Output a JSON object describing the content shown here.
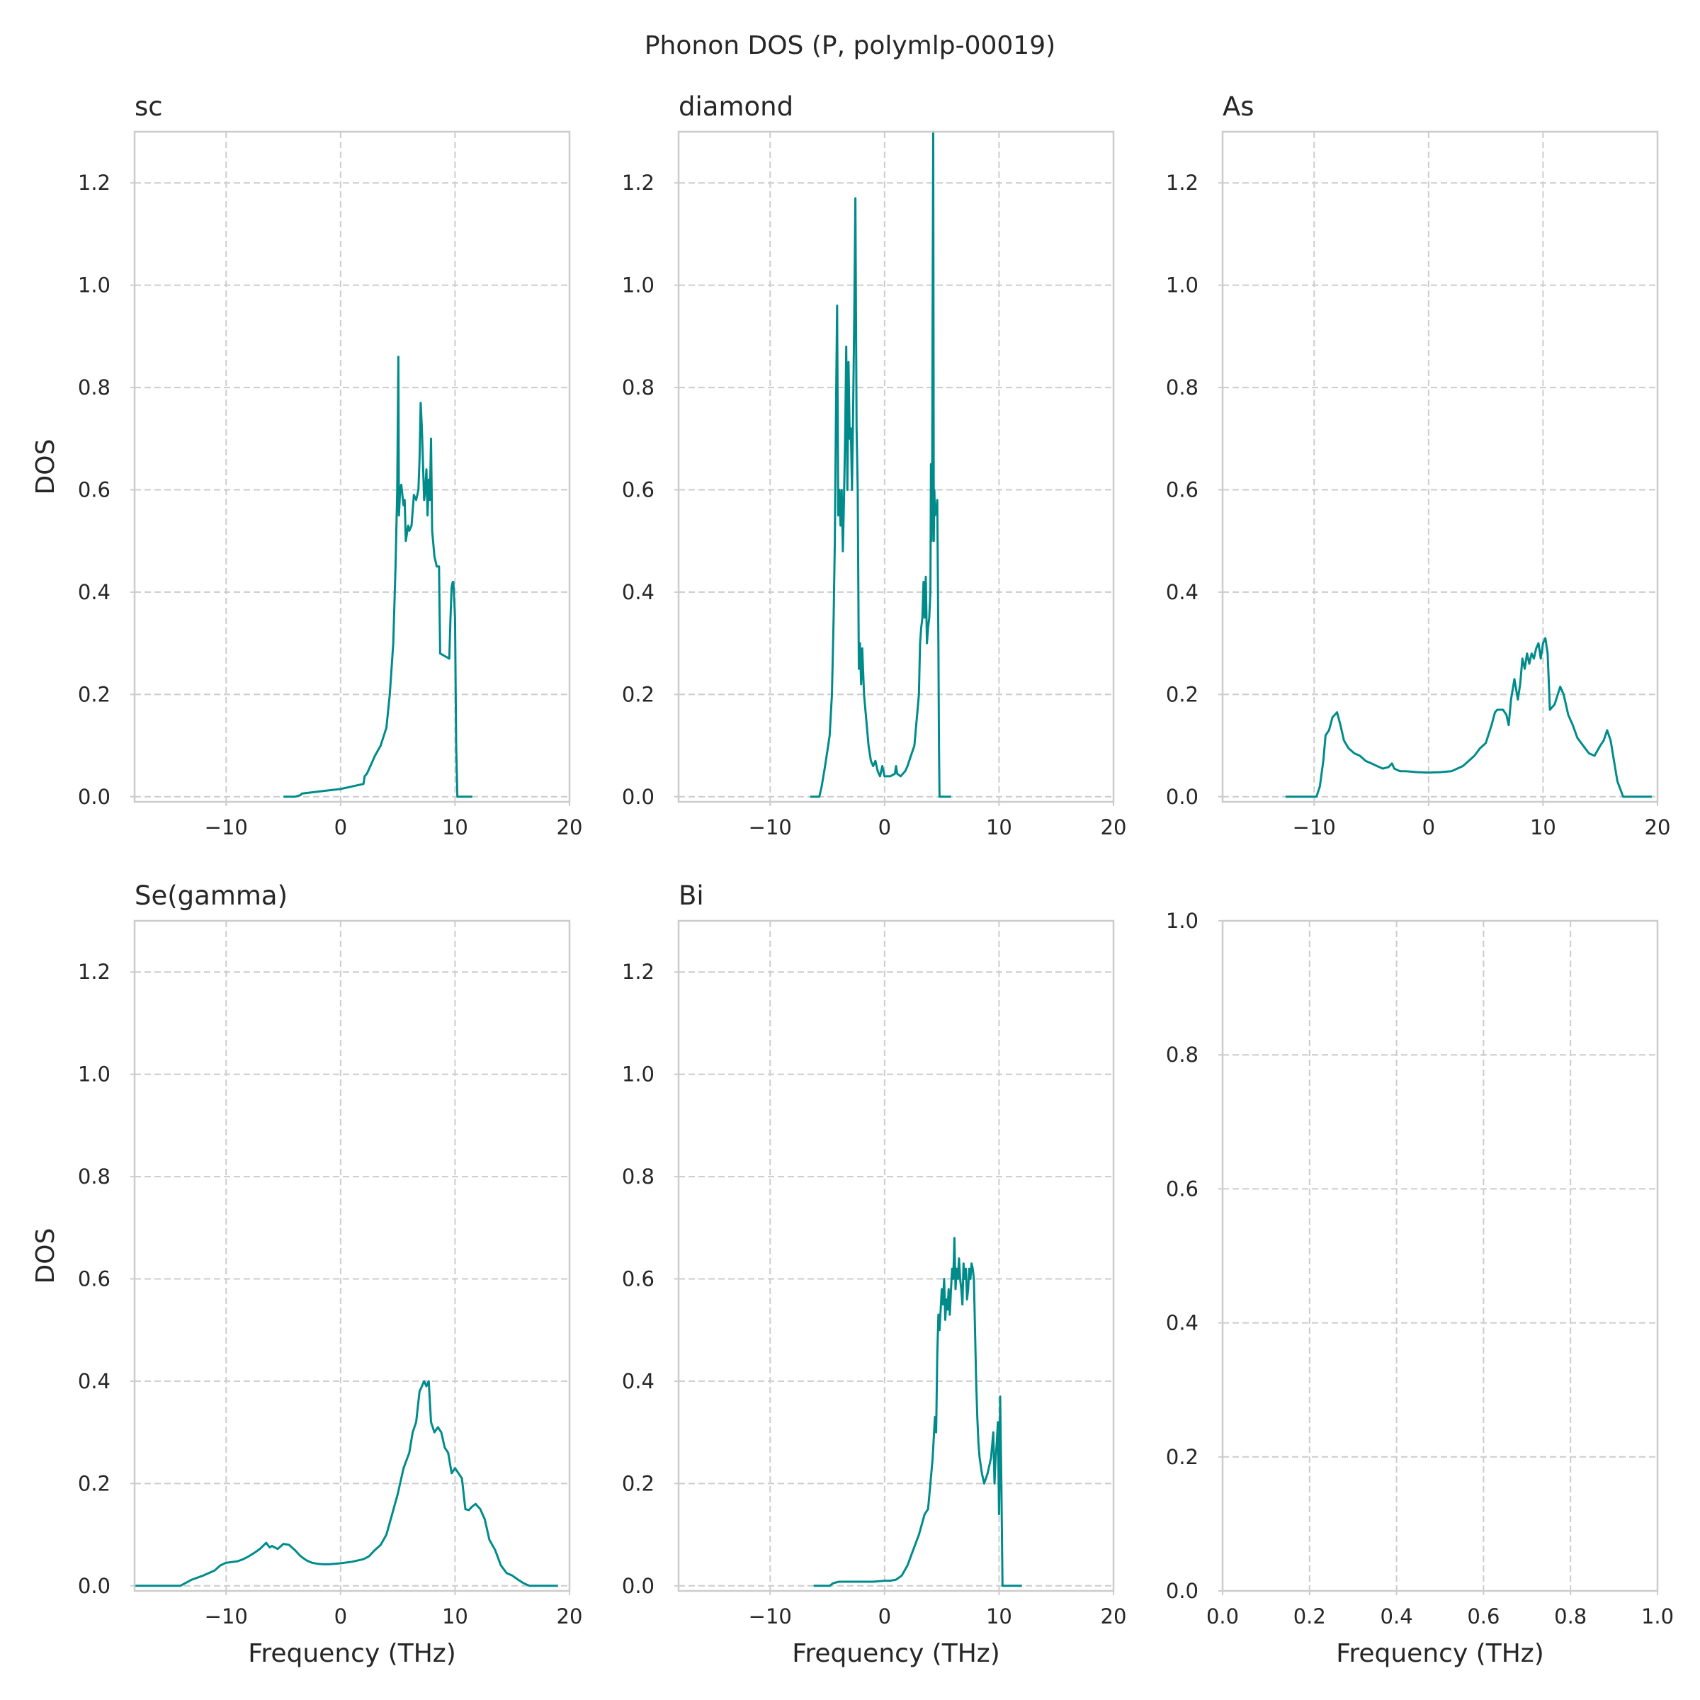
{
  "figure": {
    "title": "Phonon DOS (P, polymlp-00019)",
    "line_color": "#008b8b",
    "grid": true
  },
  "chart_data": [
    {
      "type": "line",
      "title": "sc",
      "xlabel": "",
      "ylabel": "DOS",
      "xlim": [
        -18,
        20
      ],
      "ylim": [
        -0.01,
        1.3
      ],
      "xticks": [
        -10,
        0,
        10,
        20
      ],
      "xtick_labels": [
        "−10",
        "0",
        "10",
        "20"
      ],
      "yticks": [
        0.0,
        0.2,
        0.4,
        0.6,
        0.8,
        1.0,
        1.2
      ],
      "ytick_labels": [
        "0.0",
        "0.2",
        "0.4",
        "0.6",
        "0.8",
        "1.0",
        "1.2"
      ],
      "series": [
        {
          "x": [
            -5.0,
            -4.0,
            -3.5,
            -3.4,
            -2.0,
            0.0,
            1.0,
            2.0,
            2.1,
            2.3,
            2.6,
            3.0,
            3.5,
            4.0,
            4.3,
            4.6,
            4.8,
            4.95,
            5.05,
            5.1,
            5.2,
            5.3,
            5.5,
            5.6,
            5.7,
            5.9,
            6.0,
            6.2,
            6.4,
            6.6,
            6.8,
            6.9,
            7.0,
            7.1,
            7.2,
            7.3,
            7.4,
            7.5,
            7.6,
            7.7,
            7.8,
            7.9,
            8.0,
            8.2,
            8.4,
            8.6,
            8.7,
            9.5,
            9.6,
            9.7,
            9.8,
            9.85,
            9.9,
            10.0,
            10.1,
            10.2,
            10.5,
            11.5
          ],
          "y": [
            0.0,
            0.0,
            0.003,
            0.006,
            0.01,
            0.015,
            0.02,
            0.025,
            0.04,
            0.045,
            0.06,
            0.08,
            0.1,
            0.135,
            0.2,
            0.3,
            0.45,
            0.6,
            0.86,
            0.55,
            0.6,
            0.61,
            0.57,
            0.58,
            0.5,
            0.53,
            0.52,
            0.53,
            0.59,
            0.58,
            0.6,
            0.66,
            0.77,
            0.72,
            0.65,
            0.58,
            0.6,
            0.64,
            0.55,
            0.62,
            0.58,
            0.7,
            0.52,
            0.47,
            0.45,
            0.45,
            0.28,
            0.27,
            0.35,
            0.41,
            0.42,
            0.42,
            0.4,
            0.35,
            0.1,
            0.0,
            0.0,
            0.0
          ]
        }
      ]
    },
    {
      "type": "line",
      "title": "diamond",
      "xlabel": "",
      "ylabel": "",
      "xlim": [
        -18,
        20
      ],
      "ylim": [
        -0.01,
        1.3
      ],
      "xticks": [
        -10,
        0,
        10,
        20
      ],
      "xtick_labels": [
        "−10",
        "0",
        "10",
        "20"
      ],
      "yticks": [
        0.0,
        0.2,
        0.4,
        0.6,
        0.8,
        1.0,
        1.2
      ],
      "ytick_labels": [
        "0.0",
        "0.2",
        "0.4",
        "0.6",
        "0.8",
        "1.0",
        "1.2"
      ],
      "series": [
        {
          "x": [
            -6.5,
            -5.7,
            -5.5,
            -5.2,
            -5.0,
            -4.8,
            -4.6,
            -4.45,
            -4.35,
            -4.25,
            -4.15,
            -4.05,
            -3.95,
            -3.85,
            -3.75,
            -3.65,
            -3.55,
            -3.45,
            -3.35,
            -3.25,
            -3.15,
            -3.05,
            -2.95,
            -2.85,
            -2.75,
            -2.65,
            -2.55,
            -2.45,
            -2.35,
            -2.25,
            -2.15,
            -2.05,
            -1.95,
            -1.8,
            -1.6,
            -1.4,
            -1.2,
            -1.0,
            -0.8,
            -0.7,
            -0.6,
            -0.4,
            -0.2,
            0.0,
            0.5,
            0.9,
            1.0,
            1.1,
            1.4,
            1.6,
            1.8,
            2.0,
            2.3,
            2.6,
            2.8,
            3.0,
            3.1,
            3.2,
            3.3,
            3.4,
            3.5,
            3.6,
            3.7,
            3.8,
            3.9,
            4.0,
            4.05,
            4.1,
            4.15,
            4.2,
            4.25,
            4.3,
            4.35,
            4.4,
            4.5,
            4.6,
            4.7,
            4.75,
            4.8,
            4.9,
            5.0,
            5.8
          ],
          "y": [
            0.0,
            0.0,
            0.02,
            0.06,
            0.09,
            0.12,
            0.2,
            0.35,
            0.5,
            0.75,
            0.96,
            0.55,
            0.6,
            0.53,
            0.6,
            0.48,
            0.58,
            0.7,
            0.88,
            0.6,
            0.85,
            0.7,
            0.72,
            0.6,
            0.75,
            0.94,
            1.17,
            0.72,
            0.6,
            0.25,
            0.3,
            0.22,
            0.29,
            0.2,
            0.15,
            0.1,
            0.07,
            0.06,
            0.07,
            0.06,
            0.05,
            0.04,
            0.06,
            0.04,
            0.04,
            0.045,
            0.06,
            0.045,
            0.04,
            0.045,
            0.05,
            0.06,
            0.08,
            0.1,
            0.15,
            0.2,
            0.3,
            0.33,
            0.35,
            0.42,
            0.35,
            0.43,
            0.3,
            0.33,
            0.35,
            0.4,
            0.65,
            0.5,
            0.6,
            0.98,
            1.3,
            0.5,
            0.6,
            0.55,
            0.56,
            0.58,
            0.3,
            0.1,
            0.0,
            0.0,
            0.0,
            0.0
          ]
        }
      ]
    },
    {
      "type": "line",
      "title": "As",
      "xlabel": "",
      "ylabel": "",
      "xlim": [
        -18,
        20
      ],
      "ylim": [
        -0.01,
        1.3
      ],
      "xticks": [
        -10,
        0,
        10,
        20
      ],
      "xtick_labels": [
        "−10",
        "0",
        "10",
        "20"
      ],
      "yticks": [
        0.0,
        0.2,
        0.4,
        0.6,
        0.8,
        1.0,
        1.2
      ],
      "ytick_labels": [
        "0.0",
        "0.2",
        "0.4",
        "0.6",
        "0.8",
        "1.0",
        "1.2"
      ],
      "series": [
        {
          "x": [
            -12.5,
            -9.8,
            -9.5,
            -9.2,
            -9.0,
            -8.7,
            -8.4,
            -8.0,
            -7.7,
            -7.4,
            -7.0,
            -6.5,
            -6.0,
            -5.5,
            -5.0,
            -4.5,
            -4.0,
            -3.5,
            -3.2,
            -3.0,
            -2.5,
            -2.0,
            -1.0,
            0.0,
            1.0,
            2.0,
            3.0,
            3.5,
            4.0,
            4.5,
            5.0,
            5.5,
            5.8,
            6.0,
            6.5,
            6.8,
            7.0,
            7.2,
            7.5,
            7.8,
            8.0,
            8.2,
            8.4,
            8.6,
            8.8,
            9.0,
            9.2,
            9.4,
            9.6,
            9.8,
            10.0,
            10.2,
            10.4,
            10.6,
            11.0,
            11.5,
            11.8,
            12.2,
            12.6,
            13.0,
            13.5,
            14.0,
            14.5,
            15.0,
            15.3,
            15.6,
            15.9,
            16.2,
            16.5,
            17.0,
            18.0,
            19.5
          ],
          "y": [
            0.0,
            0.0,
            0.02,
            0.07,
            0.12,
            0.13,
            0.155,
            0.165,
            0.14,
            0.11,
            0.095,
            0.085,
            0.08,
            0.07,
            0.065,
            0.06,
            0.055,
            0.058,
            0.065,
            0.055,
            0.05,
            0.05,
            0.048,
            0.047,
            0.048,
            0.05,
            0.06,
            0.07,
            0.08,
            0.095,
            0.105,
            0.14,
            0.165,
            0.17,
            0.17,
            0.16,
            0.14,
            0.19,
            0.23,
            0.19,
            0.22,
            0.27,
            0.25,
            0.28,
            0.26,
            0.28,
            0.27,
            0.29,
            0.3,
            0.27,
            0.3,
            0.31,
            0.28,
            0.17,
            0.18,
            0.215,
            0.2,
            0.16,
            0.14,
            0.115,
            0.1,
            0.085,
            0.08,
            0.1,
            0.11,
            0.13,
            0.11,
            0.07,
            0.03,
            0.0,
            0.0,
            0.0
          ]
        }
      ]
    },
    {
      "type": "line",
      "title": "Se(gamma)",
      "xlabel": "Frequency (THz)",
      "ylabel": "DOS",
      "xlim": [
        -18,
        20
      ],
      "ylim": [
        -0.01,
        1.3
      ],
      "xticks": [
        -10,
        0,
        10,
        20
      ],
      "xtick_labels": [
        "−10",
        "0",
        "10",
        "20"
      ],
      "yticks": [
        0.0,
        0.2,
        0.4,
        0.6,
        0.8,
        1.0,
        1.2
      ],
      "ytick_labels": [
        "0.0",
        "0.2",
        "0.4",
        "0.6",
        "0.8",
        "1.0",
        "1.2"
      ],
      "series": [
        {
          "x": [
            -18.0,
            -14.0,
            -13.0,
            -12.0,
            -11.0,
            -10.5,
            -10.0,
            -9.0,
            -8.5,
            -8.0,
            -7.5,
            -7.0,
            -6.5,
            -6.2,
            -6.0,
            -5.5,
            -5.0,
            -4.5,
            -4.0,
            -3.5,
            -3.0,
            -2.5,
            -2.0,
            -1.5,
            -1.0,
            0.0,
            1.0,
            2.0,
            2.5,
            3.0,
            3.5,
            4.0,
            4.5,
            5.0,
            5.5,
            6.0,
            6.3,
            6.6,
            6.9,
            7.1,
            7.3,
            7.5,
            7.7,
            7.9,
            8.2,
            8.5,
            8.8,
            9.1,
            9.4,
            9.7,
            10.0,
            10.3,
            10.6,
            10.9,
            11.2,
            11.5,
            11.8,
            12.2,
            12.6,
            13.0,
            13.5,
            14.0,
            14.5,
            15.0,
            15.5,
            16.0,
            16.5,
            17.0,
            18.0,
            19.0
          ],
          "y": [
            0.0,
            0.0,
            0.012,
            0.02,
            0.03,
            0.04,
            0.045,
            0.048,
            0.052,
            0.058,
            0.065,
            0.073,
            0.084,
            0.075,
            0.078,
            0.072,
            0.082,
            0.08,
            0.07,
            0.058,
            0.05,
            0.045,
            0.043,
            0.042,
            0.042,
            0.044,
            0.047,
            0.052,
            0.058,
            0.07,
            0.08,
            0.1,
            0.14,
            0.18,
            0.23,
            0.26,
            0.3,
            0.32,
            0.38,
            0.39,
            0.4,
            0.39,
            0.4,
            0.32,
            0.3,
            0.31,
            0.3,
            0.27,
            0.26,
            0.22,
            0.23,
            0.22,
            0.21,
            0.15,
            0.148,
            0.155,
            0.16,
            0.15,
            0.13,
            0.09,
            0.07,
            0.04,
            0.025,
            0.02,
            0.012,
            0.005,
            0.0,
            0.0,
            0.0,
            0.0
          ]
        }
      ]
    },
    {
      "type": "line",
      "title": "Bi",
      "xlabel": "Frequency (THz)",
      "ylabel": "",
      "xlim": [
        -18,
        20
      ],
      "ylim": [
        -0.01,
        1.3
      ],
      "xticks": [
        -10,
        0,
        10,
        20
      ],
      "xtick_labels": [
        "−10",
        "0",
        "10",
        "20"
      ],
      "yticks": [
        0.0,
        0.2,
        0.4,
        0.6,
        0.8,
        1.0,
        1.2
      ],
      "ytick_labels": [
        "0.0",
        "0.2",
        "0.4",
        "0.6",
        "0.8",
        "1.0",
        "1.2"
      ],
      "series": [
        {
          "x": [
            -6.2,
            -4.8,
            -4.5,
            -4.0,
            -3.0,
            -2.0,
            -1.0,
            0.0,
            0.5,
            1.0,
            1.5,
            2.0,
            2.5,
            3.0,
            3.5,
            3.8,
            4.0,
            4.2,
            4.4,
            4.5,
            4.6,
            4.7,
            4.8,
            4.9,
            5.0,
            5.1,
            5.2,
            5.3,
            5.4,
            5.5,
            5.6,
            5.7,
            5.8,
            5.9,
            6.0,
            6.1,
            6.2,
            6.3,
            6.4,
            6.5,
            6.6,
            6.7,
            6.8,
            6.9,
            7.0,
            7.1,
            7.2,
            7.3,
            7.4,
            7.5,
            7.6,
            7.7,
            7.8,
            7.9,
            8.0,
            8.1,
            8.2,
            8.3,
            8.5,
            8.7,
            9.0,
            9.3,
            9.5,
            9.6,
            9.7,
            9.8,
            9.9,
            10.0,
            10.1,
            10.2,
            10.3,
            10.5,
            12.0
          ],
          "y": [
            0.0,
            0.0,
            0.005,
            0.008,
            0.008,
            0.008,
            0.008,
            0.01,
            0.01,
            0.012,
            0.02,
            0.04,
            0.07,
            0.1,
            0.14,
            0.15,
            0.2,
            0.25,
            0.33,
            0.3,
            0.45,
            0.53,
            0.5,
            0.54,
            0.58,
            0.55,
            0.6,
            0.52,
            0.56,
            0.54,
            0.58,
            0.53,
            0.58,
            0.62,
            0.6,
            0.68,
            0.58,
            0.62,
            0.6,
            0.64,
            0.6,
            0.58,
            0.55,
            0.63,
            0.6,
            0.62,
            0.56,
            0.58,
            0.62,
            0.6,
            0.63,
            0.62,
            0.6,
            0.5,
            0.4,
            0.33,
            0.28,
            0.25,
            0.22,
            0.2,
            0.22,
            0.25,
            0.3,
            0.2,
            0.25,
            0.28,
            0.32,
            0.14,
            0.37,
            0.2,
            0.0,
            0.0,
            0.0
          ]
        }
      ]
    },
    {
      "type": "line",
      "title": "",
      "xlabel": "Frequency (THz)",
      "ylabel": "",
      "xlim": [
        0,
        1
      ],
      "ylim": [
        0,
        1
      ],
      "xticks": [
        0.0,
        0.2,
        0.4,
        0.6,
        0.8,
        1.0
      ],
      "xtick_labels": [
        "0.0",
        "0.2",
        "0.4",
        "0.6",
        "0.8",
        "1.0"
      ],
      "yticks": [
        0.0,
        0.2,
        0.4,
        0.6,
        0.8,
        1.0
      ],
      "ytick_labels": [
        "0.0",
        "0.2",
        "0.4",
        "0.6",
        "0.8",
        "1.0"
      ],
      "series": []
    }
  ]
}
